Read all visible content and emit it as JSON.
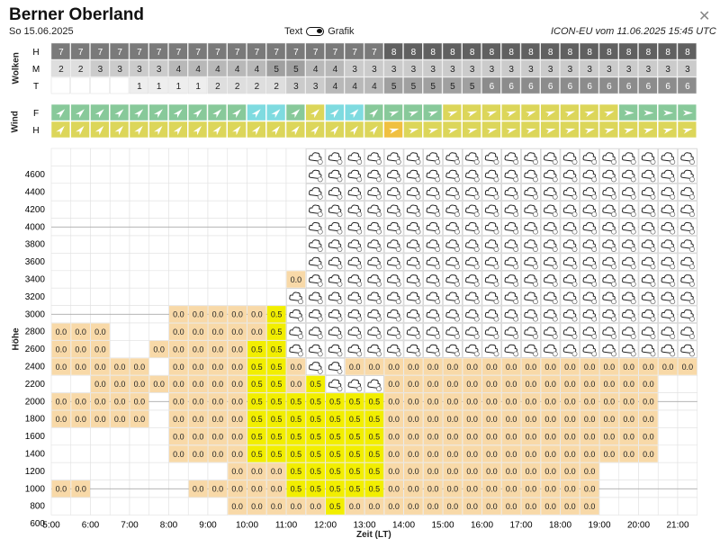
{
  "title": "Berner Oberland",
  "date": "So 15.06.2025",
  "toggle": {
    "left_label": "Text",
    "right_label": "Grafik",
    "state": "Grafik"
  },
  "model_info": "ICON-EU vom 11.06.2025 15:45 UTC",
  "close_icon": "close-icon",
  "clouds": {
    "section_label": "Wolken",
    "rows": [
      {
        "label": "H",
        "values": [
          7,
          7,
          7,
          7,
          7,
          7,
          7,
          7,
          7,
          7,
          7,
          7,
          7,
          7,
          7,
          7,
          7,
          8,
          8,
          8,
          8,
          8,
          8,
          8,
          8,
          8,
          8,
          8,
          8,
          8,
          8,
          8,
          8
        ]
      },
      {
        "label": "M",
        "values": [
          2,
          2,
          3,
          3,
          3,
          3,
          4,
          4,
          4,
          4,
          4,
          5,
          5,
          4,
          4,
          3,
          3,
          3,
          3,
          3,
          3,
          3,
          3,
          3,
          3,
          3,
          3,
          3,
          3,
          3,
          3,
          3,
          3
        ]
      },
      {
        "label": "T",
        "values": [
          null,
          null,
          null,
          null,
          1,
          1,
          1,
          1,
          2,
          2,
          2,
          2,
          3,
          3,
          4,
          4,
          4,
          5,
          5,
          5,
          5,
          5,
          6,
          6,
          6,
          6,
          6,
          6,
          6,
          6,
          6,
          6,
          6
        ]
      }
    ],
    "colors": {
      "8": "#606060",
      "7": "#7a7a7a",
      "6": "#8c8c8c",
      "5": "#a0a0a0",
      "4": "#b8b8b8",
      "3": "#cbcbcb",
      "2": "#dedede",
      "1": "#eeeeee"
    }
  },
  "wind": {
    "section_label": "Wind",
    "rows": [
      {
        "label": "F",
        "colors": [
          "g",
          "g",
          "g",
          "g",
          "g",
          "g",
          "g",
          "g",
          "g",
          "g",
          "c",
          "c",
          "g",
          "y",
          "c",
          "c",
          "g",
          "g",
          "g",
          "g",
          "y",
          "y",
          "y",
          "y",
          "y",
          "y",
          "y",
          "y",
          "y",
          "g",
          "g",
          "g",
          "g"
        ]
      },
      {
        "label": "H",
        "colors": [
          "y",
          "y",
          "y",
          "y",
          "y",
          "y",
          "y",
          "y",
          "y",
          "y",
          "y",
          "y",
          "y",
          "y",
          "y",
          "y",
          "y",
          "o",
          "y",
          "y",
          "y",
          "y",
          "y",
          "y",
          "y",
          "y",
          "y",
          "y",
          "y",
          "y",
          "y",
          "y",
          "y"
        ]
      }
    ],
    "palette": {
      "g": "#88c99a",
      "c": "#7fdbe0",
      "y": "#dcd65a",
      "o": "#f0c040"
    }
  },
  "chart_data": {
    "type": "heatmap",
    "ylabel": "Höhe",
    "xlabel": "Zeit (LT)",
    "x_ticks": [
      "5:00",
      "6:00",
      "7:00",
      "8:00",
      "9:00",
      "10:00",
      "11:00",
      "12:00",
      "13:00",
      "14:00",
      "15:00",
      "16:00",
      "17:00",
      "18:00",
      "19:00",
      "20:00",
      "21:00"
    ],
    "y_ticks": [
      600,
      800,
      1000,
      1200,
      1400,
      1600,
      1800,
      2000,
      2200,
      2400,
      2600,
      2800,
      3000,
      3200,
      3400,
      3600,
      3800,
      4000,
      4200,
      4400,
      4600
    ],
    "cell_value_labels": [
      "0.0",
      "0.5"
    ],
    "cell_colors": {
      "0.0": "#f8d9a8",
      "0.5": "#f2ee00",
      "cloud": "#ffffff"
    },
    "cloud_icon": "cloud-rain-icon"
  }
}
